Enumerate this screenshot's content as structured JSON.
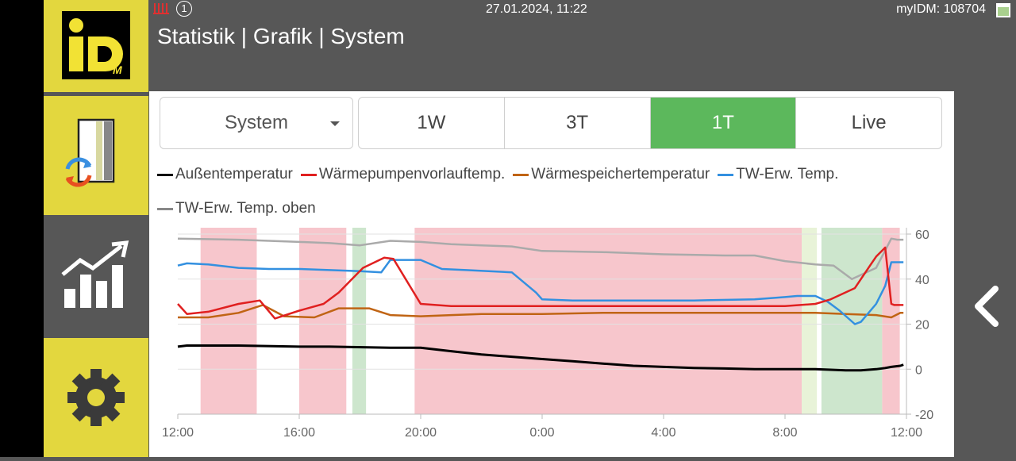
{
  "header": {
    "title": "Statistik | Grafik | System",
    "datetime": "27.01.2024, 11:22",
    "device_id": "myIDM: 108704",
    "notification_count": "1"
  },
  "logo": {
    "big": "iD",
    "small": "M"
  },
  "colors": {
    "accent_yellow": "#e3d73e",
    "sidebar_gray": "#575757",
    "active_green": "#5cb85c"
  },
  "sidebar": {
    "items": [
      {
        "icon": "logo-icon"
      },
      {
        "icon": "heatpump-exchange-icon"
      },
      {
        "icon": "statistics-chart-icon"
      },
      {
        "icon": "gear-icon"
      }
    ]
  },
  "controls": {
    "select_value": "System",
    "tabs": [
      "1W",
      "3T",
      "1T",
      "Live"
    ],
    "active_tab": "1T"
  },
  "chart_data": {
    "type": "line",
    "x_labels": [
      "12:00",
      "16:00",
      "20:00",
      "0:00",
      "4:00",
      "8:00",
      "12:00"
    ],
    "y_ticks": [
      60,
      40,
      20,
      0,
      -20
    ],
    "ylim": [
      -20,
      60
    ],
    "x_range_hours": [
      12,
      36
    ],
    "grid": true,
    "y_axis_side": "right",
    "legend_position": "top",
    "series": [
      {
        "name": "Außentemperatur",
        "color": "#000000",
        "x": [
          12,
          12.3,
          14,
          16,
          17,
          19,
          20,
          21,
          22,
          23,
          24,
          25,
          26,
          27,
          28,
          29,
          30,
          31,
          32,
          33,
          34,
          34.5,
          35,
          35.3,
          35.5,
          35.8,
          35.9
        ],
        "y": [
          10,
          10.5,
          10.5,
          10,
          10,
          9.5,
          9.5,
          8,
          6.5,
          5.5,
          4.5,
          3.5,
          2.5,
          1.5,
          1,
          0.5,
          0.3,
          0,
          0,
          0,
          -0.5,
          -0.5,
          0,
          0.5,
          1,
          1.5,
          2
        ]
      },
      {
        "name": "Wärmepumpenvorlauftemp.",
        "color": "#e02020",
        "x": [
          12,
          12.3,
          13,
          14,
          14.7,
          15.2,
          16,
          16.8,
          17.3,
          18.1,
          18.8,
          19.1,
          20,
          21,
          22,
          23,
          24,
          26,
          28,
          30,
          32,
          33,
          33.5,
          34.3,
          34.8,
          35,
          35.3,
          35.5,
          35.6,
          35.9
        ],
        "y": [
          29,
          24.5,
          25.5,
          29,
          30.5,
          22.5,
          26,
          29,
          34,
          45,
          49.5,
          49,
          29,
          28,
          28,
          28,
          28,
          28,
          28,
          28,
          28,
          29,
          31,
          36,
          46,
          50,
          54,
          29,
          28.5,
          28.5
        ]
      },
      {
        "name": "Wärmespeichertemperatur",
        "color": "#c06414",
        "x": [
          12,
          13,
          14,
          14.8,
          15.5,
          16.5,
          17.3,
          18,
          18.3,
          19,
          20,
          21,
          22,
          23,
          24,
          26,
          28,
          30,
          32,
          33,
          34,
          35,
          35.5,
          35.8,
          35.9
        ],
        "y": [
          23,
          23,
          25,
          28.5,
          23.5,
          23,
          27,
          27,
          27,
          24,
          23.5,
          24,
          24.5,
          24.5,
          24.5,
          25,
          25,
          25,
          25,
          25,
          24.5,
          24,
          23,
          25,
          25
        ]
      },
      {
        "name": "TW-Erw. Temp.",
        "color": "#3390e0",
        "x": [
          12,
          12.3,
          13,
          14,
          15,
          16,
          17,
          18,
          18.7,
          19,
          20,
          20.7,
          21.5,
          23,
          23.8,
          24,
          25,
          27,
          29,
          31,
          32,
          32.4,
          33,
          33.4,
          33.8,
          34.3,
          34.5,
          35,
          35.3,
          35.5,
          35.9
        ],
        "y": [
          46,
          47,
          46.5,
          45,
          44.5,
          44.5,
          44,
          43.5,
          43,
          48.5,
          48.5,
          44.5,
          44,
          43,
          34,
          31,
          30.5,
          30.5,
          30.5,
          31,
          32,
          32.5,
          32.5,
          30,
          26,
          20,
          21,
          29,
          37,
          47.5,
          47.5
        ]
      },
      {
        "name": "TW-Erw. Temp. oben",
        "color": "#aaaaaa",
        "x": [
          12,
          14,
          16,
          17,
          18,
          19,
          20,
          21,
          22,
          23,
          24,
          26,
          28,
          30,
          31,
          32,
          33,
          33.6,
          34.2,
          35,
          35.5,
          35.7,
          35.9
        ],
        "y": [
          58,
          57.5,
          56.5,
          56,
          55,
          57,
          56.5,
          55.5,
          55,
          54.5,
          52.5,
          52,
          51,
          50.5,
          50.5,
          48,
          46.5,
          46,
          40,
          45,
          58,
          57.5,
          57.5
        ]
      }
    ],
    "bands": [
      {
        "color": "#f7c6cc",
        "from": 12.75,
        "to": 14.6
      },
      {
        "color": "#f7c6cc",
        "from": 16,
        "to": 17.55
      },
      {
        "color": "#cde6cd",
        "from": 17.75,
        "to": 18.2
      },
      {
        "color": "#f7c6cc",
        "from": 19.8,
        "to": 32.55
      },
      {
        "color": "#e8f3d8",
        "from": 32.55,
        "to": 33.05
      },
      {
        "color": "#cde6cd",
        "from": 33.2,
        "to": 35.2
      },
      {
        "color": "#f7c6cc",
        "from": 35.2,
        "to": 35.78
      }
    ]
  }
}
